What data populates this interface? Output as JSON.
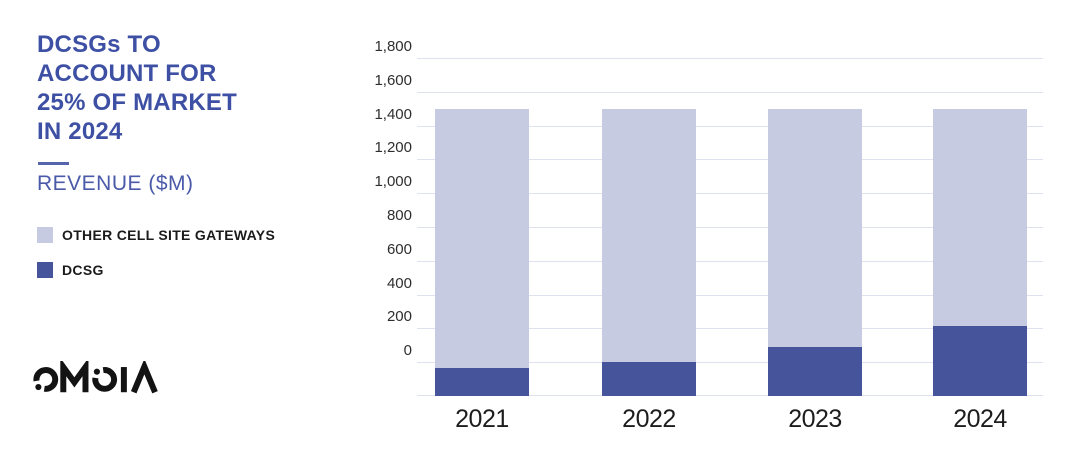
{
  "left_panel": {
    "title": "DCSGs TO\nACCOUNT FOR\n25% OF MARKET\nIN 2024",
    "subtitle": "REVENUE ($M)",
    "legend": [
      {
        "label": "OTHER CELL SITE GATEWAYS",
        "color": "#c7cbe1"
      },
      {
        "label": "DCSG",
        "color": "#46549b"
      }
    ],
    "logo_text": "OMDIA"
  },
  "chart_data": {
    "type": "bar",
    "stacked": true,
    "title": "DCSGs to account for 25% of market in 2024",
    "ylabel": "Revenue ($M)",
    "categories": [
      "2021",
      "2022",
      "2023",
      "2024"
    ],
    "series": [
      {
        "name": "DCSG",
        "color": "#46549b",
        "values": [
          165,
          200,
          290,
          415
        ]
      },
      {
        "name": "OTHER CELL SITE GATEWAYS",
        "color": "#c7cbe1",
        "values": [
          1535,
          1500,
          1410,
          1285
        ]
      }
    ],
    "totals": [
      1700,
      1700,
      1700,
      1700
    ],
    "y_axis": {
      "min": 0,
      "max": 1800,
      "step": 200,
      "tick_format": "thousands-comma",
      "baseline_offset_units": 200,
      "labels_above_gridlines": true
    },
    "grid": true,
    "gridline_color": "#dee1ee",
    "axis_text_color": "#2e2e2e",
    "legend_position": "left-panel"
  },
  "colors": {
    "title": "#3e50a4",
    "subtitle": "#4a5aa9",
    "divider": "#5565ad",
    "legend_text": "#1b1b1b",
    "logo": "#131313",
    "background": "#ffffff"
  }
}
